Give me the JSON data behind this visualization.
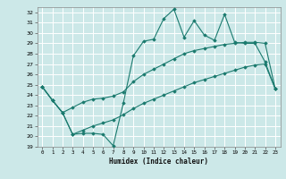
{
  "title": "",
  "xlabel": "Humidex (Indice chaleur)",
  "bg_color": "#cce8e8",
  "line_color": "#1a7a6e",
  "xlim": [
    -0.5,
    23.5
  ],
  "ylim": [
    19,
    32.5
  ],
  "yticks": [
    19,
    20,
    21,
    22,
    23,
    24,
    25,
    26,
    27,
    28,
    29,
    30,
    31,
    32
  ],
  "xticks": [
    0,
    1,
    2,
    3,
    4,
    5,
    6,
    7,
    8,
    9,
    10,
    11,
    12,
    13,
    14,
    15,
    16,
    17,
    18,
    19,
    20,
    21,
    22,
    23
  ],
  "series1_x": [
    0,
    1,
    2,
    3,
    4,
    5,
    6,
    7,
    8,
    9,
    10,
    11,
    12,
    13,
    14,
    15,
    16,
    17,
    18,
    19,
    20,
    21,
    22,
    23
  ],
  "series1_y": [
    24.8,
    23.5,
    22.3,
    20.2,
    20.3,
    20.3,
    20.2,
    19.1,
    23.2,
    27.8,
    29.2,
    29.4,
    31.4,
    32.3,
    29.6,
    31.2,
    29.8,
    29.3,
    31.8,
    29.1,
    29.0,
    29.0,
    27.2,
    24.6
  ],
  "series2_x": [
    0,
    1,
    2,
    3,
    4,
    5,
    6,
    7,
    8,
    9,
    10,
    11,
    12,
    13,
    14,
    15,
    16,
    17,
    18,
    19,
    20,
    21,
    22,
    23
  ],
  "series2_y": [
    24.8,
    23.5,
    22.3,
    22.8,
    23.3,
    23.6,
    23.7,
    23.9,
    24.3,
    25.3,
    26.0,
    26.5,
    27.0,
    27.5,
    28.0,
    28.3,
    28.5,
    28.7,
    28.9,
    29.0,
    29.1,
    29.1,
    29.0,
    24.6
  ],
  "series3_x": [
    0,
    1,
    2,
    3,
    4,
    5,
    6,
    7,
    8,
    9,
    10,
    11,
    12,
    13,
    14,
    15,
    16,
    17,
    18,
    19,
    20,
    21,
    22,
    23
  ],
  "series3_y": [
    24.8,
    23.5,
    22.3,
    20.2,
    20.6,
    21.0,
    21.3,
    21.6,
    22.1,
    22.7,
    23.2,
    23.6,
    24.0,
    24.4,
    24.8,
    25.2,
    25.5,
    25.8,
    26.1,
    26.4,
    26.7,
    26.9,
    27.0,
    24.6
  ]
}
